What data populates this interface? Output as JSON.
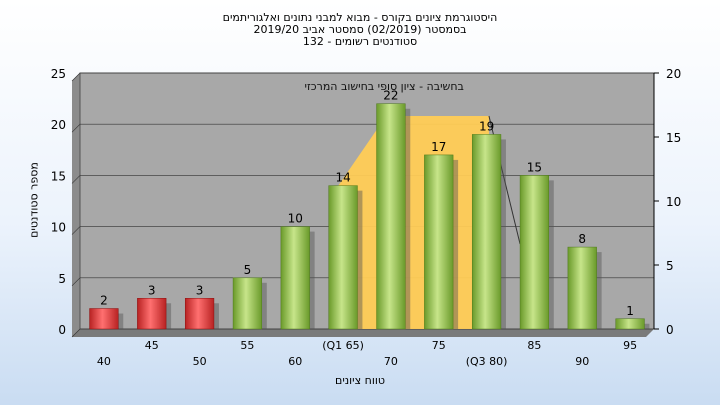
{
  "titles": {
    "line1": "היסטוגרמת ציונים בקורס - מבוא למבני נתונים ואלגוריתמים",
    "line2": "בסמסטר  (02/2019)  סמסטר אביב 2019/20",
    "line3": "סטודנטים רשומים - 132"
  },
  "chart_data": {
    "type": "bar",
    "ylabel": "מספר סטודנטים",
    "xlabel": "טווח ציונים",
    "categories": [
      "40",
      "45",
      "50",
      "55",
      "60",
      "(Q1 65)",
      "70",
      "75",
      "(Q3 80)",
      "85",
      "90",
      "95"
    ],
    "values": [
      2,
      3,
      3,
      5,
      10,
      14,
      22,
      17,
      19,
      15,
      8,
      1
    ],
    "bar_colors": [
      "#e04040",
      "#e04040",
      "#e04040",
      "#8cc63e",
      "#8cc63e",
      "#8cc63e",
      "#8cc63e",
      "#8cc63e",
      "#8cc63e",
      "#8cc63e",
      "#8cc63e",
      "#8cc63e"
    ],
    "ylim_left": [
      0,
      25
    ],
    "yticks_left": [
      0,
      5,
      10,
      15,
      20,
      25
    ],
    "ylim_right": [
      0,
      20
    ],
    "yticks_right": [
      0,
      5,
      10,
      15,
      20
    ],
    "grid": true,
    "annotation": "בחשיבה - ציון סופי בחישוב המרכזי",
    "quartile_band": {
      "from_category": "(Q1 65)",
      "to_category": "(Q3 80)",
      "color": "#ffcc55"
    },
    "plot_background": "#a8a8a8"
  }
}
